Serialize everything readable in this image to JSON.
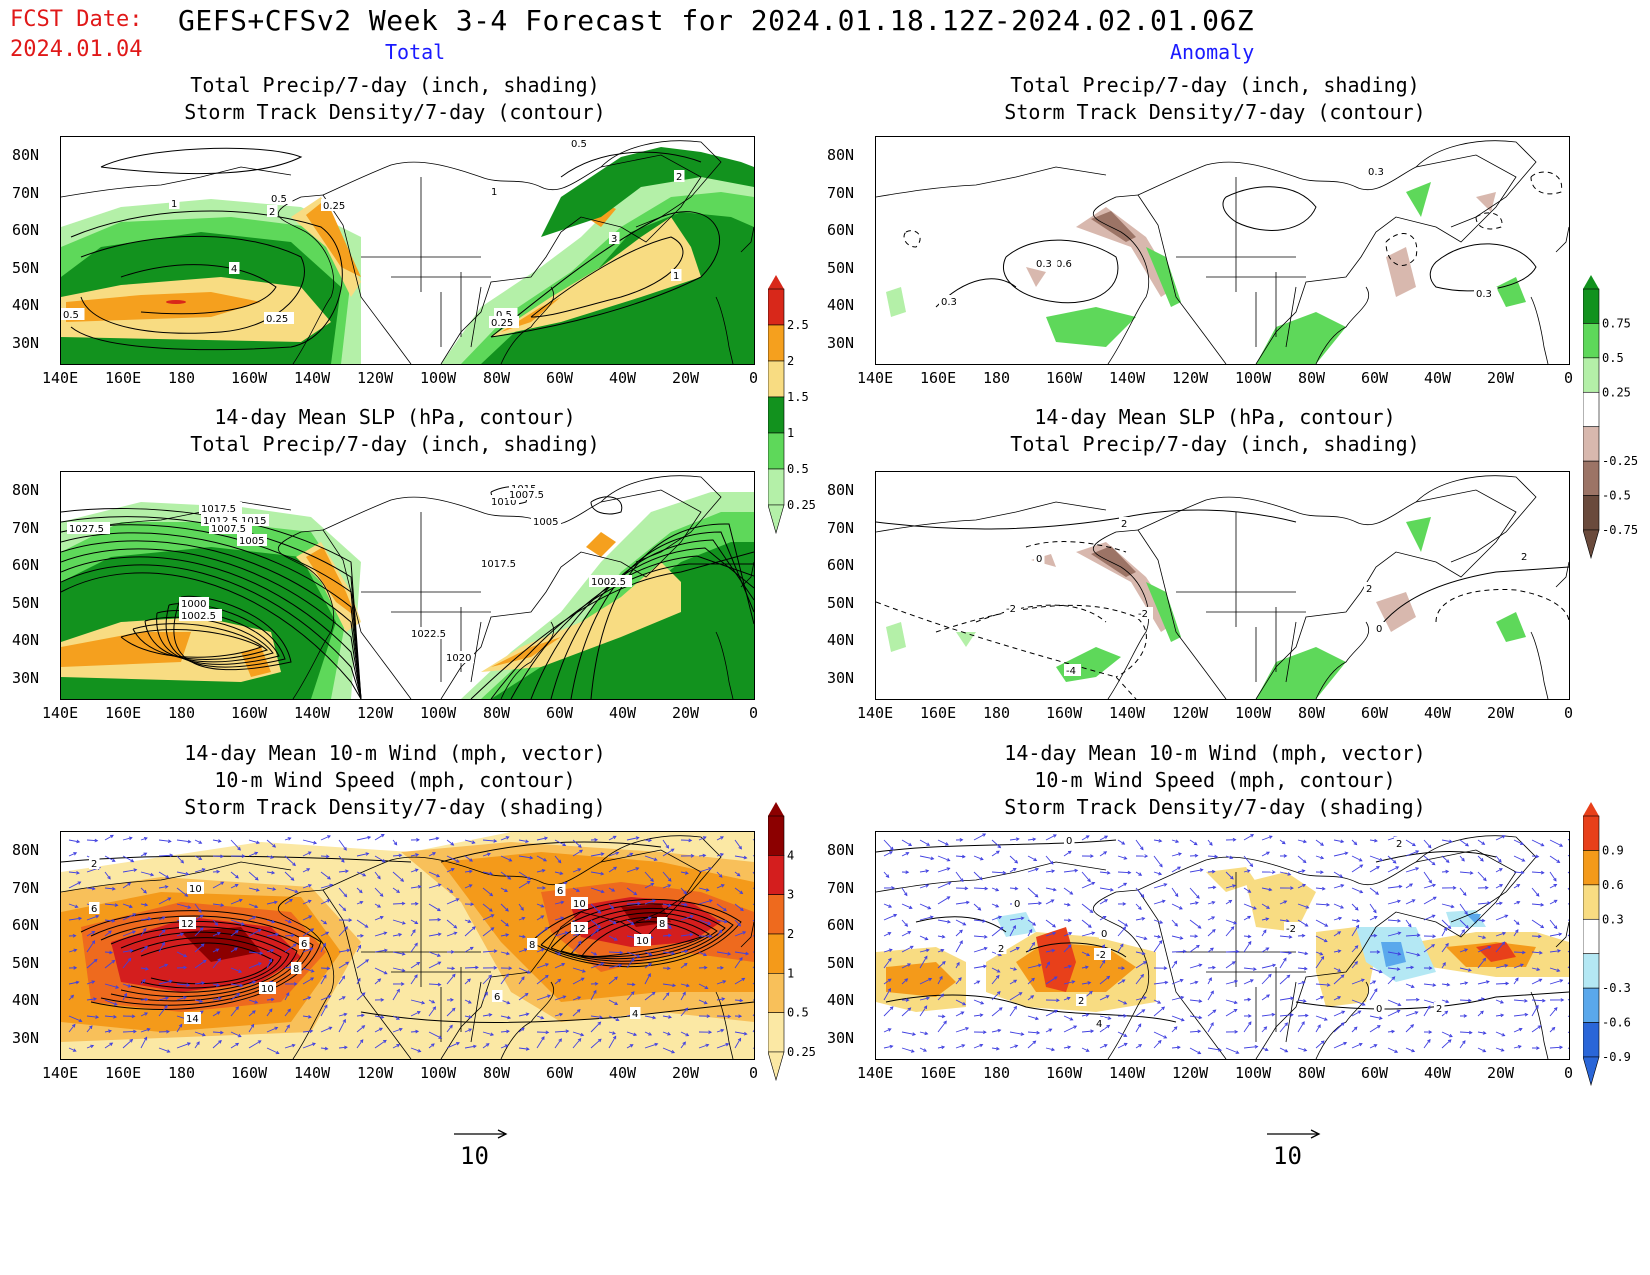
{
  "header": {
    "fcst_line1": "FCST Date:",
    "fcst_line2": "2024.01.04",
    "title": "GEFS+CFSv2 Week 3-4 Forecast for 2024.01.18.12Z-2024.02.01.06Z",
    "col_left": "Total",
    "col_right": "Anomaly"
  },
  "axes": {
    "lat_ticks": [
      "80N",
      "70N",
      "60N",
      "50N",
      "40N",
      "30N"
    ],
    "lon_ticks": [
      "140E",
      "160E",
      "180",
      "160W",
      "140W",
      "120W",
      "100W",
      "80W",
      "60W",
      "40W",
      "20W",
      "0"
    ]
  },
  "panels": {
    "r1_total": {
      "title1": "Total Precip/7-day (inch, shading)",
      "title2": "Storm Track Density/7-day (contour)"
    },
    "r1_anom": {
      "title1": "Total Precip/7-day (inch, shading)",
      "title2": "Storm Track Density/7-day (contour)"
    },
    "r2_total": {
      "title1": "14-day Mean SLP (hPa, contour)",
      "title2": "Total Precip/7-day (inch, shading)"
    },
    "r2_anom": {
      "title1": "14-day Mean SLP (hPa, contour)",
      "title2": "Total Precip/7-day (inch, shading)"
    },
    "r3_total": {
      "title1": "14-day Mean 10-m Wind (mph, vector)",
      "title2": "10-m Wind Speed (mph, contour)",
      "title3": "Storm Track Density/7-day (shading)"
    },
    "r3_anom": {
      "title1": "14-day Mean 10-m Wind (mph, vector)",
      "title2": "10-m Wind Speed (mph, contour)",
      "title3": "Storm Track Density/7-day (shading)"
    }
  },
  "colorbars": {
    "precip_total": {
      "labels": [
        "2.5",
        "2",
        "1.5",
        "1",
        "0.5",
        "0.25"
      ],
      "colors": [
        "#d8281a",
        "#f5a01e",
        "#f8dc82",
        "#12921e",
        "#5ed85a",
        "#b4f0a8"
      ]
    },
    "precip_anom": {
      "labels": [
        "0.75",
        "0.5",
        "0.25",
        "-0.25",
        "-0.5",
        "-0.75"
      ],
      "colors": [
        "#12921e",
        "#5ed85a",
        "#b4f0a8",
        "#ffffff",
        "#d8b8ae",
        "#9c7466",
        "#6a4a3c"
      ]
    },
    "storm_total": {
      "labels": [
        "4",
        "3",
        "2",
        "1",
        "0.5",
        "0.25"
      ],
      "colors": [
        "#8c0000",
        "#d41e1e",
        "#ee6a1e",
        "#f49a1a",
        "#f8c05a",
        "#fbe8a4"
      ]
    },
    "storm_anom": {
      "labels": [
        "0.9",
        "0.6",
        "0.3",
        "-0.3",
        "-0.6",
        "-0.9"
      ],
      "colors": [
        "#e8401a",
        "#f49a1a",
        "#f8dc82",
        "#ffffff",
        "#b4e8f4",
        "#5aa8ec",
        "#2a66d8"
      ]
    }
  },
  "contour_labels": {
    "r1_total": [
      "0.5",
      "1",
      "0.5",
      "0.25",
      "2",
      "1",
      "4",
      "3",
      "2",
      "1",
      "0.5",
      "0.25",
      "0.5",
      "0.25"
    ],
    "r1_anom": [
      "0.3",
      "0.3",
      "0.6",
      "0.3",
      "0.3"
    ],
    "r2_total": [
      "1027.5",
      "1017.5",
      "1012.5",
      "1015",
      "1007.5",
      "1005",
      "1000",
      "1002.5",
      "1015",
      "1010",
      "1007.5",
      "1005",
      "1017.5",
      "1002.5",
      "1022.5",
      "1020"
    ],
    "r2_anom": [
      "2",
      "2",
      "0",
      "-2",
      "-4",
      "0",
      "2",
      "-2"
    ],
    "r3_total": [
      "10",
      "12",
      "6",
      "8",
      "10",
      "14",
      "6",
      "6",
      "8",
      "10",
      "12",
      "8",
      "10",
      "6",
      "4",
      "2"
    ],
    "r3_anom": [
      "0",
      "2",
      "-2",
      "2",
      "0",
      "-2",
      "4",
      "0",
      "2",
      "0",
      "2"
    ]
  },
  "vector_ref": {
    "value": "10"
  }
}
